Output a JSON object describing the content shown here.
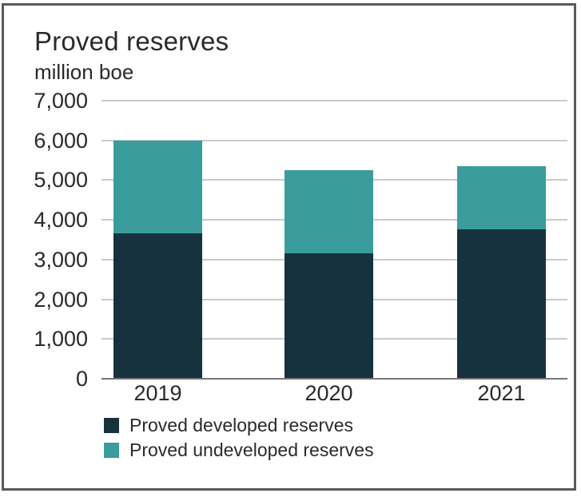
{
  "frame": {
    "border_color": "#58595b",
    "background_color": "#ffffff"
  },
  "chart_data": {
    "type": "bar",
    "stacked": true,
    "title": "Proved reserves",
    "subtitle": "million boe",
    "categories": [
      "2019",
      "2020",
      "2021"
    ],
    "series": [
      {
        "name": "Proved developed reserves",
        "color": "#16323e",
        "values": [
          3670,
          3160,
          3770
        ]
      },
      {
        "name": "Proved undeveloped reserves",
        "color": "#3a9c9d",
        "values": [
          2330,
          2090,
          1580
        ]
      }
    ],
    "totals": [
      6000,
      5250,
      5350
    ],
    "xlabel": "",
    "ylabel": "million boe",
    "ylim": [
      0,
      7000
    ],
    "ytick_step": 1000,
    "ytick_labels": [
      "0",
      "1,000",
      "2,000",
      "3,000",
      "4,000",
      "5,000",
      "6,000",
      "7,000"
    ],
    "grid": true,
    "gridline_color": "#c9cacc",
    "axis_line_color": "#76777a",
    "text_color": "#2b2a29",
    "legend_position": "bottom-left"
  }
}
